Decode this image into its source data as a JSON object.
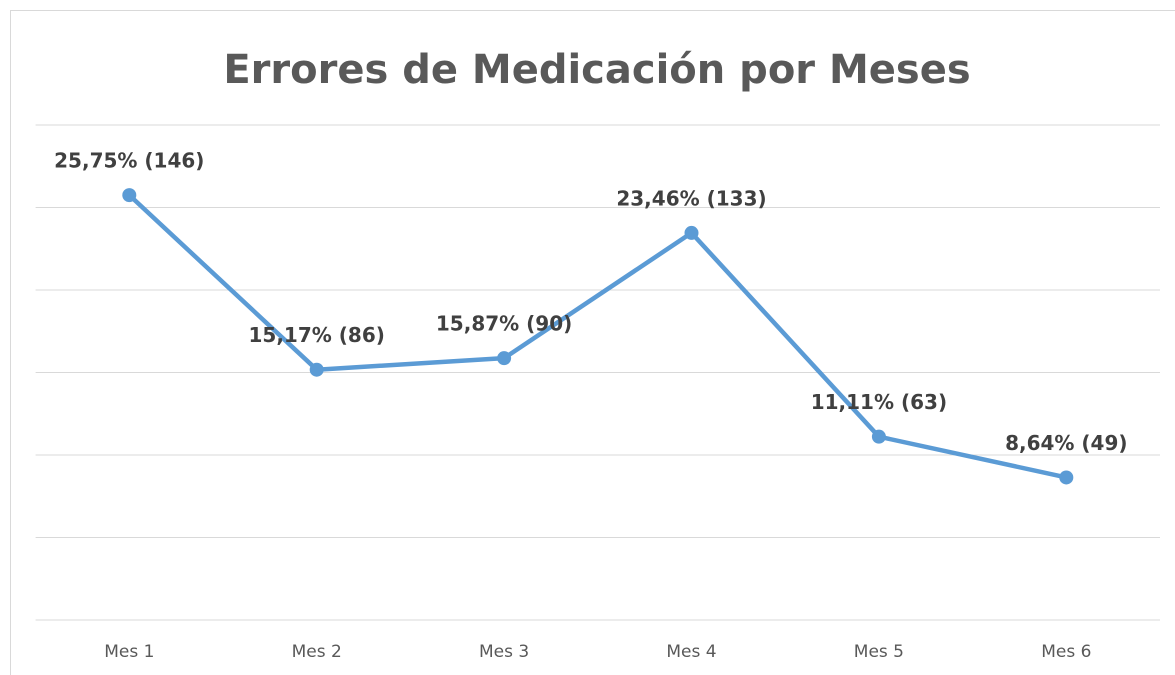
{
  "chart_data": {
    "type": "line",
    "title": "Errores de Medicación por Meses",
    "categories": [
      "Mes 1",
      "Mes 2",
      "Mes 3",
      "Mes 4",
      "Mes 5",
      "Mes 6"
    ],
    "values": [
      25.75,
      15.17,
      15.87,
      23.46,
      11.11,
      8.64
    ],
    "value_labels": [
      "25,75% (146)",
      "15,17% (86)",
      "15,87% (90)",
      "23,46% (133)",
      "11,11% (63)",
      "8,64% (49)"
    ],
    "color": "#5b9bd5",
    "ylim": [
      0,
      30
    ],
    "yticks": [
      0,
      5,
      10,
      15,
      20,
      25,
      30
    ],
    "grid": true
  }
}
